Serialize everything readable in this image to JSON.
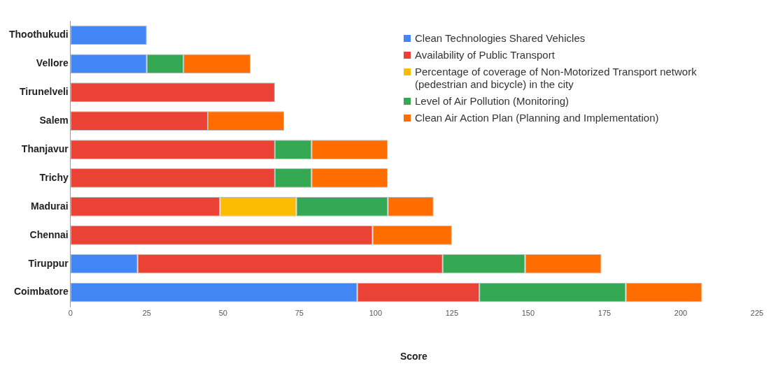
{
  "chart_data": {
    "type": "bar",
    "orientation": "horizontal",
    "stacked": true,
    "xlabel": "Score",
    "legend": "top right",
    "grid": false,
    "categories": [
      "Thoothukudi",
      "Vellore",
      "Tirunelveli",
      "Salem",
      "Thanjavur",
      "Trichy",
      "Madurai",
      "Chennai",
      "Tiruppur",
      "Coimbatore"
    ],
    "xlim": [
      0,
      225
    ],
    "xticks": [
      0,
      25,
      50,
      75,
      100,
      125,
      150,
      175,
      200,
      225
    ],
    "series": [
      {
        "name": "Clean Technologies Shared Vehicles",
        "color": "#4285f4",
        "values": [
          25,
          25,
          null,
          null,
          null,
          null,
          null,
          null,
          22,
          94
        ]
      },
      {
        "name": "Availability of Public Transport",
        "color": "#ea4335",
        "values": [
          null,
          null,
          67,
          45,
          67,
          67,
          49,
          99,
          100,
          40
        ]
      },
      {
        "name": "Percentage of coverage of Non-Motorized Transport network (pedestrian and bicycle) in the city",
        "color": "#fbbc04",
        "values": [
          null,
          null,
          null,
          null,
          null,
          null,
          25,
          null,
          null,
          null
        ]
      },
      {
        "name": "Level of Air Pollution (Monitoring)",
        "color": "#34a853",
        "values": [
          null,
          12,
          null,
          null,
          12,
          12,
          30,
          null,
          27,
          48
        ]
      },
      {
        "name": "Clean Air Action Plan (Planning and Implementation)",
        "color": "#ff6d01",
        "values": [
          null,
          22,
          null,
          25,
          25,
          25,
          15,
          26,
          25,
          25
        ]
      }
    ]
  }
}
